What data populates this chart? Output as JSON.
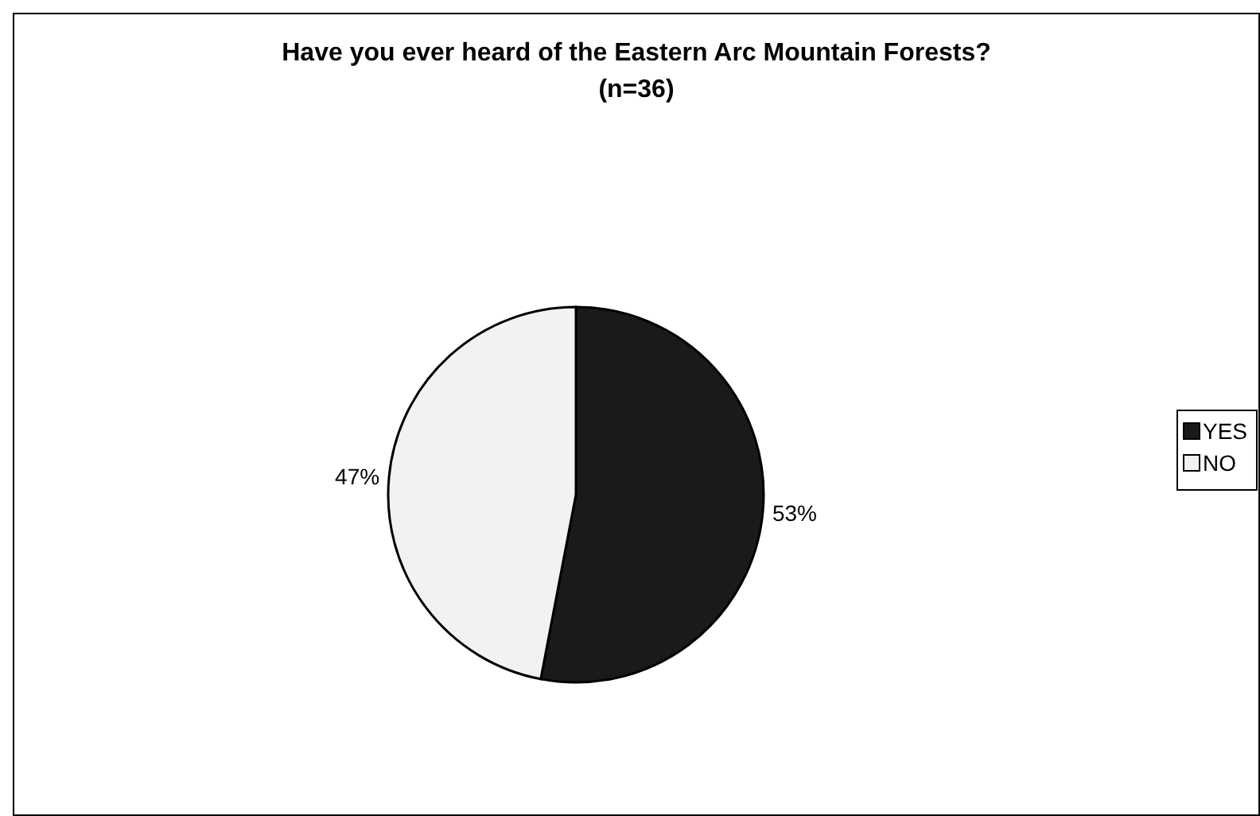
{
  "chart_data": {
    "type": "pie",
    "title": "Have you ever heard of the Eastern Arc Mountain Forests?",
    "subtitle": "(n=36)",
    "categories": [
      "YES",
      "NO"
    ],
    "values": [
      53,
      47
    ],
    "colors": [
      "#1a1a1a",
      "#f2f2f2"
    ],
    "value_labels": [
      "53%",
      "47%"
    ],
    "legend": "right"
  }
}
